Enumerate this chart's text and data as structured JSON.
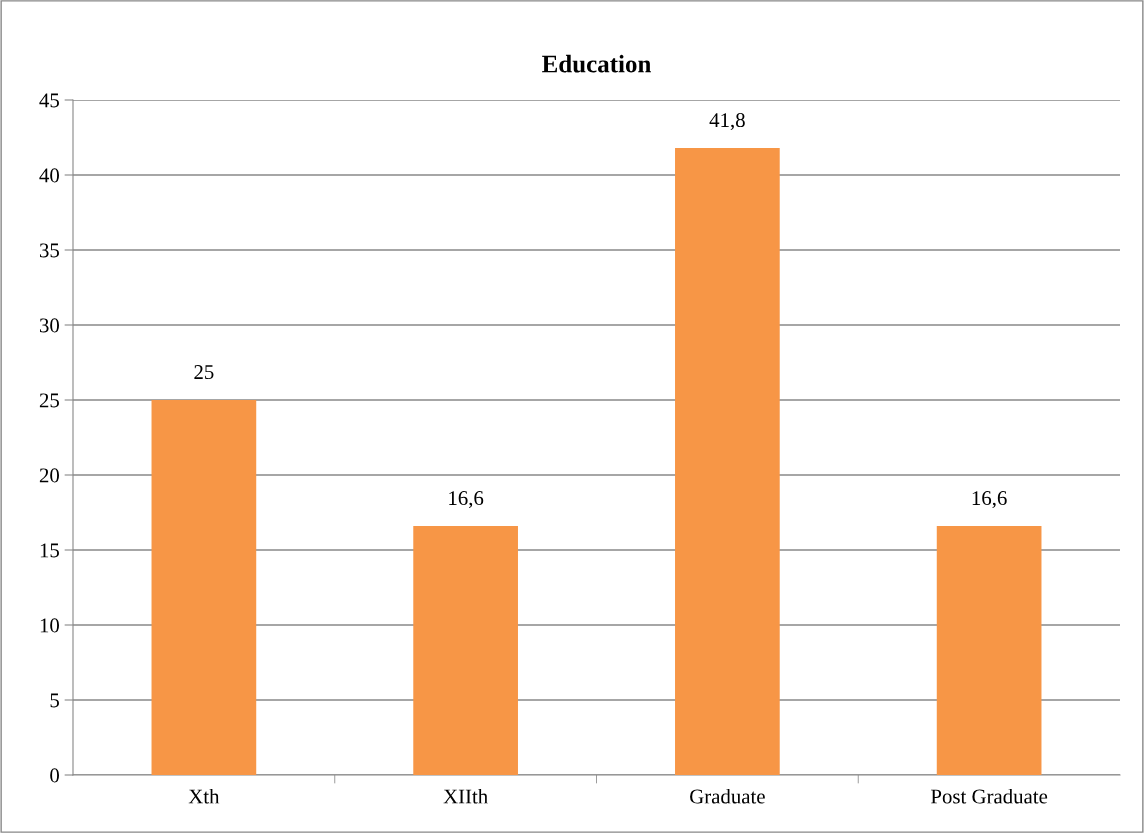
{
  "chart_data": {
    "type": "bar",
    "title": "Education",
    "categories": [
      "Xth",
      "XIIth",
      "Graduate",
      "Post Graduate"
    ],
    "values": [
      25,
      16.6,
      41.8,
      16.6
    ],
    "value_labels": [
      "25",
      "16,6",
      "41,8",
      "16,6"
    ],
    "color": "#f79646",
    "ylim": [
      0,
      45
    ],
    "yticks": [
      0,
      5,
      10,
      15,
      20,
      25,
      30,
      35,
      40,
      45
    ],
    "grid": "y",
    "legend": false
  }
}
